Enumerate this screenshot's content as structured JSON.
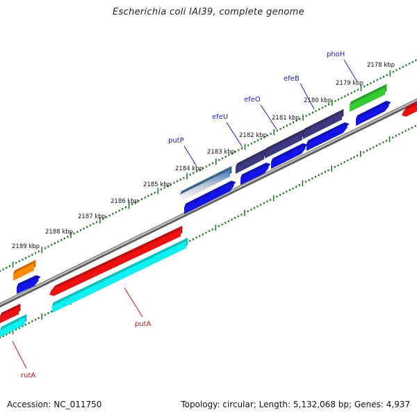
{
  "title": "Escherichia coli IAI39, complete genome",
  "footer": {
    "accession": "Accession: NC_011750",
    "topology": "Topology: circular; Length: 5,132,068 bp; Genes: 4,937"
  },
  "colors": {
    "backbone": "#8a8a8a",
    "tick_green": "#1e7a1e",
    "label_blue": "#1a1acc",
    "label_red": "#cc1111",
    "feature_blue": "#1414e6",
    "feature_navy": "#3c3a7e",
    "feature_red": "#ee1111",
    "feature_cyan": "#11f0f0",
    "feature_green": "#33cc33",
    "feature_orange": "#ff8c00",
    "feature_steel": "#4a7fae"
  },
  "kbp_labels": [
    "2178 kbp",
    "2179 kbp",
    "2180 kbp",
    "2181 kbp",
    "2182 kbp",
    "2183 kbp",
    "2184 kbp",
    "2185 kbp",
    "2186 kbp",
    "2187 kbp",
    "2188 kbp",
    "2189 kbp"
  ],
  "gene_labels": [
    {
      "id": "phoH",
      "text": "phoH",
      "color": "blue"
    },
    {
      "id": "efeB",
      "text": "efeB",
      "color": "blue"
    },
    {
      "id": "efeO",
      "text": "efeO",
      "color": "blue"
    },
    {
      "id": "efeU",
      "text": "efeU",
      "color": "blue"
    },
    {
      "id": "putP",
      "text": "putP",
      "color": "blue"
    },
    {
      "id": "putA",
      "text": "putA",
      "color": "red"
    },
    {
      "id": "rutA",
      "text": "rutA",
      "color": "red"
    }
  ]
}
